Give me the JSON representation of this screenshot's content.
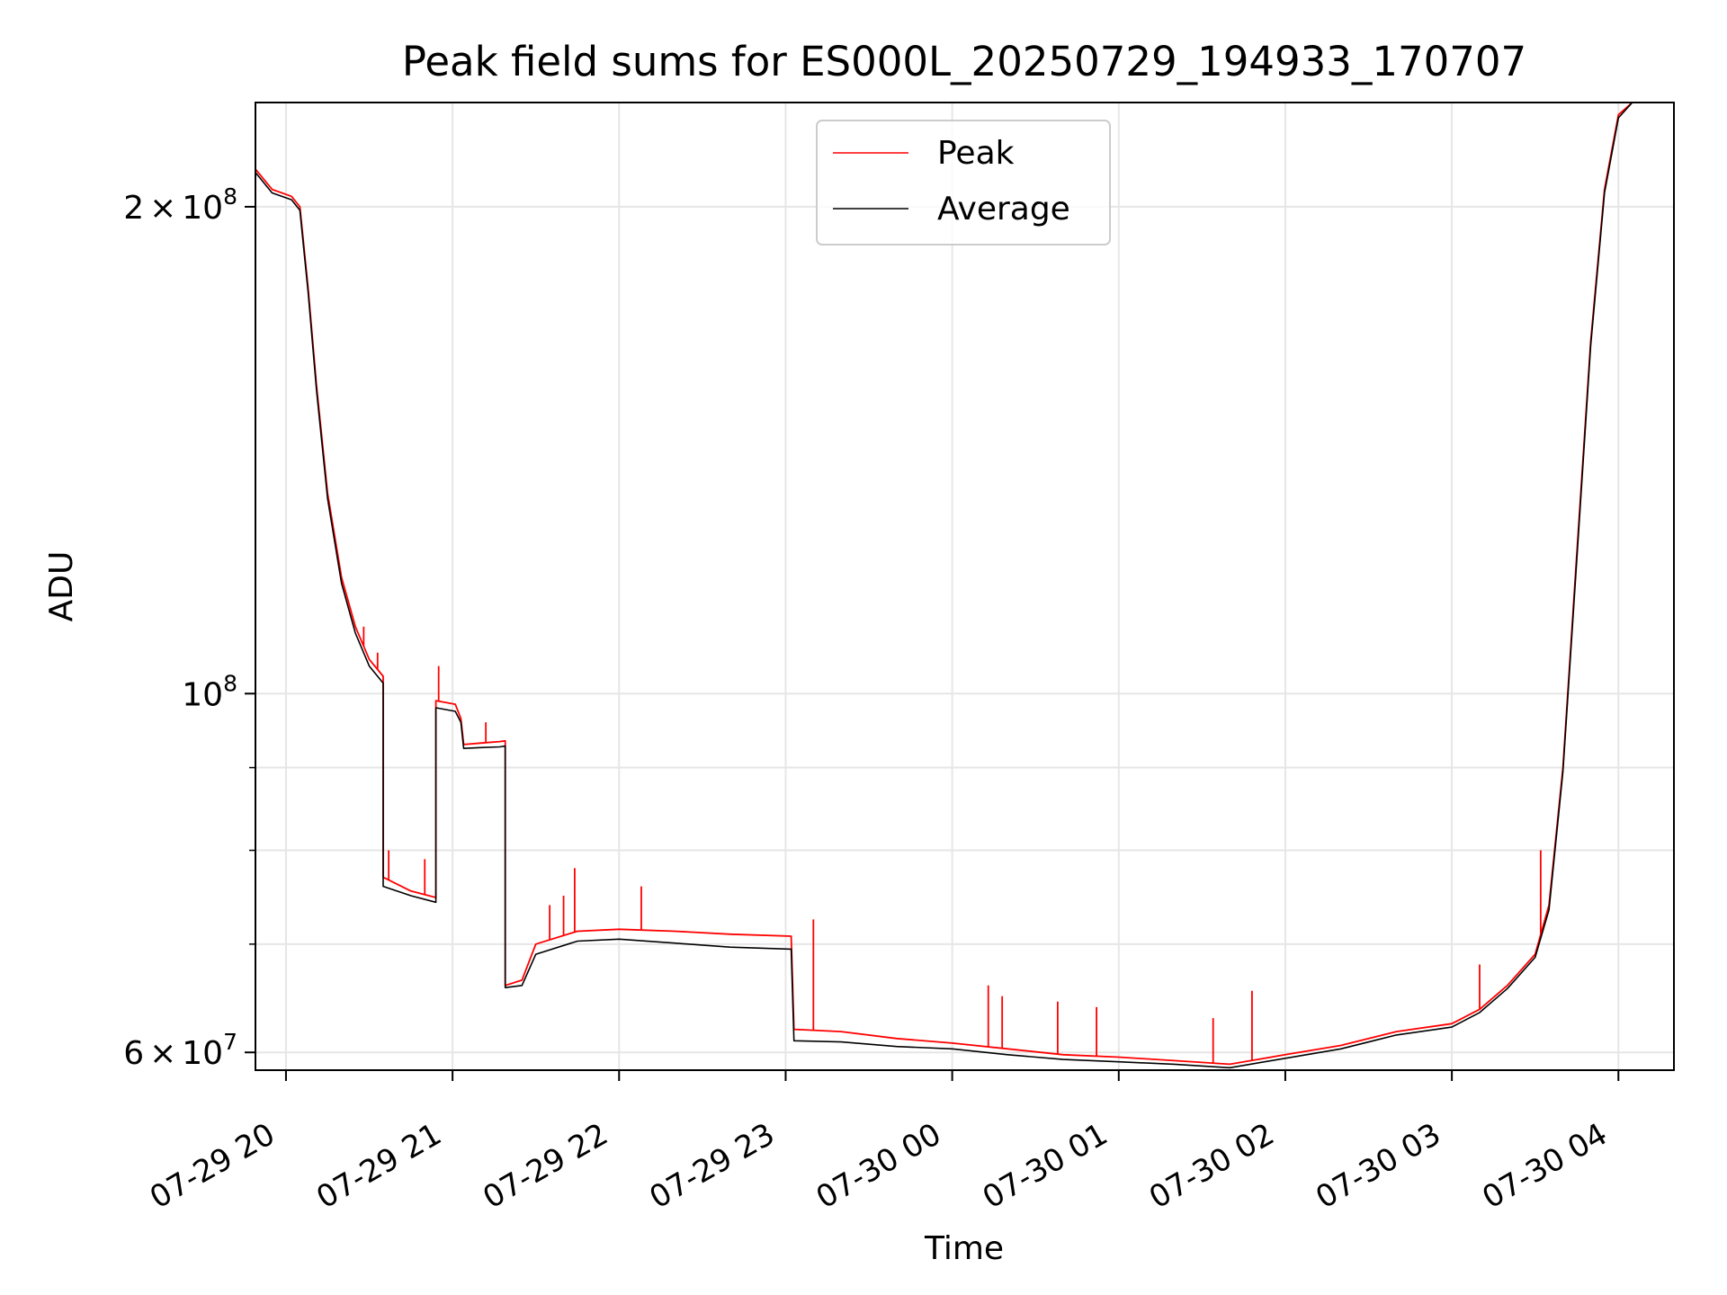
{
  "chart_data": {
    "type": "line",
    "title": "Peak field sums for ES000L_20250729_194933_170707",
    "xlabel": "Time",
    "ylabel": "ADU",
    "x_unit": "hours",
    "xlim": [
      "07-29 19:49",
      "07-30 04:20"
    ],
    "ylim": [
      58500000,
      232000000
    ],
    "yscale": "log",
    "grid": true,
    "legend_position": "top-center",
    "x_ticks": [
      {
        "value": "07-29 20:00",
        "label": "07-29 20"
      },
      {
        "value": "07-29 21:00",
        "label": "07-29 21"
      },
      {
        "value": "07-29 22:00",
        "label": "07-29 22"
      },
      {
        "value": "07-29 23:00",
        "label": "07-29 23"
      },
      {
        "value": "07-30 00:00",
        "label": "07-30 00"
      },
      {
        "value": "07-30 01:00",
        "label": "07-30 01"
      },
      {
        "value": "07-30 02:00",
        "label": "07-30 02"
      },
      {
        "value": "07-30 03:00",
        "label": "07-30 03"
      },
      {
        "value": "07-30 04:00",
        "label": "07-30 04"
      }
    ],
    "y_major_ticks": [
      {
        "value": 60000000,
        "mantissa": "6",
        "exp": "7"
      },
      {
        "value": 100000000,
        "mantissa": "",
        "exp": "8"
      },
      {
        "value": 200000000,
        "mantissa": "2",
        "exp": "8"
      }
    ],
    "y_minor_ticks": [
      70000000,
      80000000,
      90000000
    ],
    "series": [
      {
        "name": "Peak",
        "color": "#ff0000",
        "points": [
          [
            "07-29 19:49",
            211000000
          ],
          [
            "07-29 19:55",
            205000000
          ],
          [
            "07-29 20:02",
            203000000
          ],
          [
            "07-29 20:05",
            200000000
          ],
          [
            "07-29 20:08",
            178000000
          ],
          [
            "07-29 20:11",
            155000000
          ],
          [
            "07-29 20:15",
            133000000
          ],
          [
            "07-29 20:20",
            118000000
          ],
          [
            "07-29 20:25",
            110000000
          ],
          [
            "07-29 20:30",
            105000000
          ],
          [
            "07-29 20:35",
            102500000
          ],
          [
            "07-29 20:35",
            77000000
          ],
          [
            "07-29 20:45",
            75500000
          ],
          [
            "07-29 20:54",
            74800000
          ],
          [
            "07-29 20:54",
            99000000
          ],
          [
            "07-29 21:01",
            98500000
          ],
          [
            "07-29 21:03",
            96500000
          ],
          [
            "07-29 21:04",
            93000000
          ],
          [
            "07-29 21:10",
            93200000
          ],
          [
            "07-29 21:17",
            93400000
          ],
          [
            "07-29 21:19",
            93500000
          ],
          [
            "07-29 21:19",
            66000000
          ],
          [
            "07-29 21:25",
            66500000
          ],
          [
            "07-29 21:30",
            70000000
          ],
          [
            "07-29 21:45",
            71300000
          ],
          [
            "07-29 22:00",
            71500000
          ],
          [
            "07-29 22:20",
            71300000
          ],
          [
            "07-29 22:40",
            71000000
          ],
          [
            "07-29 23:02",
            70800000
          ],
          [
            "07-29 23:03",
            62000000
          ],
          [
            "07-29 23:20",
            61800000
          ],
          [
            "07-29 23:40",
            61200000
          ],
          [
            "07-30 00:00",
            60800000
          ],
          [
            "07-30 00:20",
            60300000
          ],
          [
            "07-30 00:40",
            59800000
          ],
          [
            "07-30 01:00",
            59600000
          ],
          [
            "07-30 01:20",
            59300000
          ],
          [
            "07-30 01:40",
            59000000
          ],
          [
            "07-30 02:00",
            59800000
          ],
          [
            "07-30 02:20",
            60600000
          ],
          [
            "07-30 02:40",
            61800000
          ],
          [
            "07-30 03:00",
            62500000
          ],
          [
            "07-30 03:10",
            63800000
          ],
          [
            "07-30 03:20",
            66000000
          ],
          [
            "07-30 03:30",
            69000000
          ],
          [
            "07-30 03:35",
            74000000
          ],
          [
            "07-30 03:40",
            90000000
          ],
          [
            "07-30 03:45",
            122000000
          ],
          [
            "07-30 03:50",
            165000000
          ],
          [
            "07-30 03:55",
            205000000
          ],
          [
            "07-30 04:00",
            228000000
          ],
          [
            "07-30 04:05",
            232000000
          ]
        ],
        "spikes": [
          [
            "07-29 20:28",
            110000000
          ],
          [
            "07-29 20:33",
            106000000
          ],
          [
            "07-29 20:37",
            80000000
          ],
          [
            "07-29 20:50",
            79000000
          ],
          [
            "07-29 20:55",
            104000000
          ],
          [
            "07-29 21:12",
            96000000
          ],
          [
            "07-29 21:35",
            74000000
          ],
          [
            "07-29 21:40",
            75000000
          ],
          [
            "07-29 21:44",
            78000000
          ],
          [
            "07-29 22:08",
            76000000
          ],
          [
            "07-29 23:10",
            72500000
          ],
          [
            "07-30 00:13",
            66000000
          ],
          [
            "07-30 00:18",
            65000000
          ],
          [
            "07-30 00:38",
            64500000
          ],
          [
            "07-30 00:52",
            64000000
          ],
          [
            "07-30 01:34",
            63000000
          ],
          [
            "07-30 01:48",
            65500000
          ],
          [
            "07-30 03:10",
            68000000
          ],
          [
            "07-30 03:32",
            80000000
          ]
        ]
      },
      {
        "name": "Average",
        "color": "#000000",
        "points": [
          [
            "07-29 19:49",
            210000000
          ],
          [
            "07-29 19:55",
            204000000
          ],
          [
            "07-29 20:02",
            202000000
          ],
          [
            "07-29 20:05",
            199000000
          ],
          [
            "07-29 20:08",
            177000000
          ],
          [
            "07-29 20:11",
            154000000
          ],
          [
            "07-29 20:15",
            132000000
          ],
          [
            "07-29 20:20",
            117000000
          ],
          [
            "07-29 20:25",
            109000000
          ],
          [
            "07-29 20:30",
            104000000
          ],
          [
            "07-29 20:35",
            101500000
          ],
          [
            "07-29 20:35",
            76000000
          ],
          [
            "07-29 20:45",
            75000000
          ],
          [
            "07-29 20:54",
            74300000
          ],
          [
            "07-29 20:54",
            98000000
          ],
          [
            "07-29 21:01",
            97500000
          ],
          [
            "07-29 21:03",
            96000000
          ],
          [
            "07-29 21:04",
            92500000
          ],
          [
            "07-29 21:10",
            92600000
          ],
          [
            "07-29 21:17",
            92700000
          ],
          [
            "07-29 21:19",
            92800000
          ],
          [
            "07-29 21:19",
            65800000
          ],
          [
            "07-29 21:25",
            66000000
          ],
          [
            "07-29 21:30",
            69000000
          ],
          [
            "07-29 21:45",
            70300000
          ],
          [
            "07-29 22:00",
            70500000
          ],
          [
            "07-29 22:20",
            70100000
          ],
          [
            "07-29 22:40",
            69700000
          ],
          [
            "07-29 23:02",
            69500000
          ],
          [
            "07-29 23:03",
            61000000
          ],
          [
            "07-29 23:20",
            60900000
          ],
          [
            "07-29 23:40",
            60500000
          ],
          [
            "07-30 00:00",
            60300000
          ],
          [
            "07-30 00:20",
            59800000
          ],
          [
            "07-30 00:40",
            59400000
          ],
          [
            "07-30 01:00",
            59200000
          ],
          [
            "07-30 01:20",
            59000000
          ],
          [
            "07-30 01:40",
            58700000
          ],
          [
            "07-30 02:00",
            59500000
          ],
          [
            "07-30 02:20",
            60300000
          ],
          [
            "07-30 02:40",
            61500000
          ],
          [
            "07-30 03:00",
            62200000
          ],
          [
            "07-30 03:10",
            63500000
          ],
          [
            "07-30 03:20",
            65700000
          ],
          [
            "07-30 03:30",
            68700000
          ],
          [
            "07-30 03:35",
            73500000
          ],
          [
            "07-30 03:40",
            89500000
          ],
          [
            "07-30 03:45",
            121000000
          ],
          [
            "07-30 03:50",
            164000000
          ],
          [
            "07-30 03:55",
            204000000
          ],
          [
            "07-30 04:00",
            227000000
          ],
          [
            "07-30 04:05",
            232000000
          ]
        ]
      }
    ]
  }
}
